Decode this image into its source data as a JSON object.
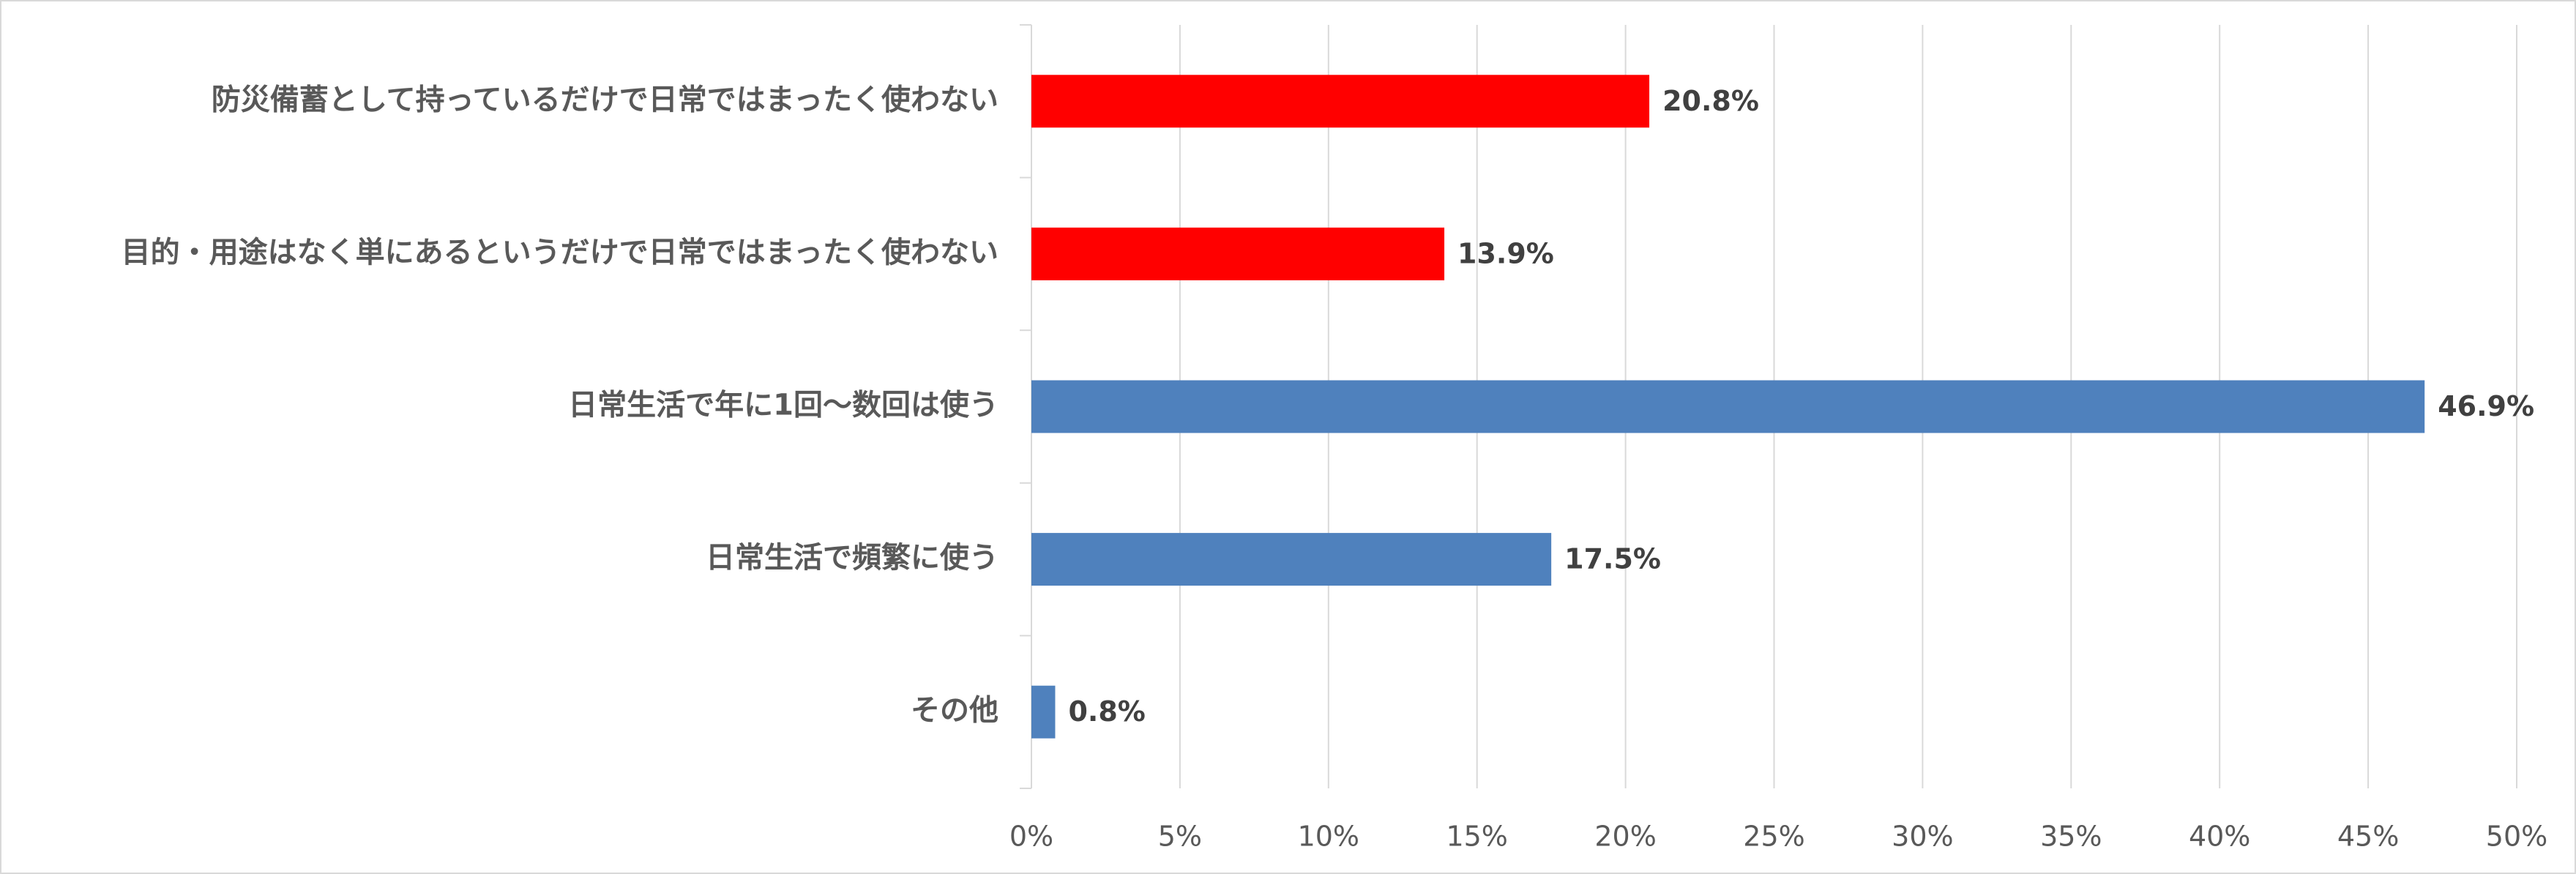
{
  "chart_data": {
    "type": "hbar",
    "categories": [
      "防災備蓄として持っているだけで日常ではまったく使わない",
      "目的・用途はなく単にあるというだけで日常ではまったく使わない",
      "日常生活で年に1回～数回は使う",
      "日常生活で頻繁に使う",
      "その他"
    ],
    "values": [
      20.8,
      13.9,
      46.9,
      17.5,
      0.8
    ],
    "value_labels": [
      "20.8%",
      "13.9%",
      "46.9%",
      "17.5%",
      "0.8%"
    ],
    "colors": [
      "#ff0000",
      "#ff0000",
      "#4f81bd",
      "#4f81bd",
      "#4f81bd"
    ],
    "xlim": [
      0,
      50
    ],
    "xticks": [
      {
        "value": 0,
        "label": "0%"
      },
      {
        "value": 5,
        "label": "5%"
      },
      {
        "value": 10,
        "label": "10%"
      },
      {
        "value": 15,
        "label": "15%"
      },
      {
        "value": 20,
        "label": "20%"
      },
      {
        "value": 25,
        "label": "25%"
      },
      {
        "value": 30,
        "label": "30%"
      },
      {
        "value": 35,
        "label": "35%"
      },
      {
        "value": 40,
        "label": "40%"
      },
      {
        "value": 45,
        "label": "45%"
      },
      {
        "value": 50,
        "label": "50%"
      }
    ],
    "grid": true
  }
}
